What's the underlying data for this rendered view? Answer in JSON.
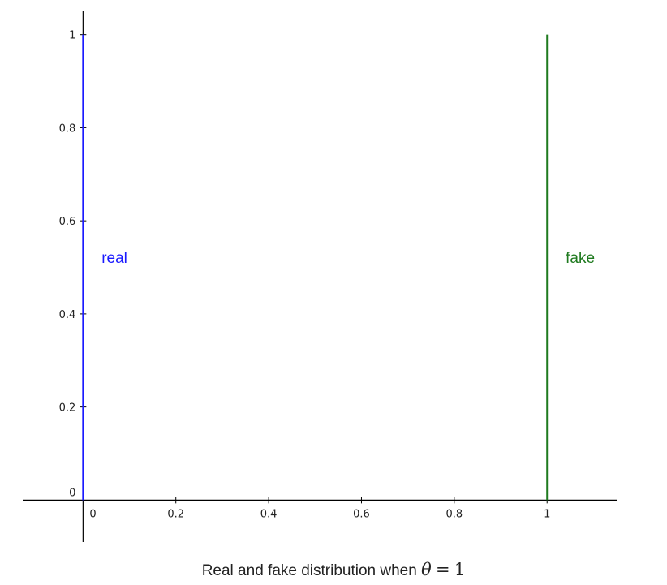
{
  "chart_data": {
    "type": "line",
    "x_ticks": [
      "0",
      "0.2",
      "0.4",
      "0.6",
      "0.8",
      "1"
    ],
    "x_tick_values": [
      0,
      0.2,
      0.4,
      0.6,
      0.8,
      1
    ],
    "y_ticks": [
      "0",
      "0.2",
      "0.4",
      "0.6",
      "0.8",
      "1"
    ],
    "y_tick_values": [
      0,
      0.2,
      0.4,
      0.6,
      0.8,
      1
    ],
    "xlim": [
      -0.13,
      1.15
    ],
    "ylim": [
      -0.09,
      1.05
    ],
    "grid": false,
    "series": [
      {
        "name": "real",
        "color": "#1a1aff",
        "x": [
          0,
          0
        ],
        "y": [
          0,
          1
        ],
        "label_at": [
          0.04,
          0.51
        ]
      },
      {
        "name": "fake",
        "color": "#1f7a1f",
        "x": [
          1,
          1
        ],
        "y": [
          0,
          1
        ],
        "label_at": [
          1.04,
          0.51
        ]
      }
    ],
    "caption": {
      "text": "Real and fake distribution when",
      "symbol": "θ",
      "operator": "=",
      "value": "1"
    }
  }
}
